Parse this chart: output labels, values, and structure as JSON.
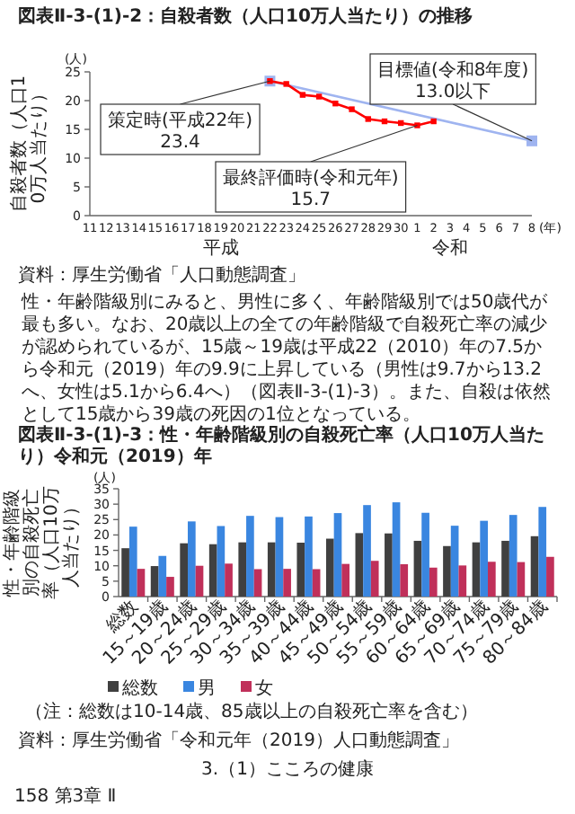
{
  "chart_data": [
    {
      "type": "line",
      "title": "図表Ⅱ-3-(1)-2：自殺者数（人口10万人当たり）の推移",
      "ylabel": "自殺者数（人口10万人当たり）",
      "xlabel": "(年)",
      "categories": [
        "11",
        "12",
        "13",
        "14",
        "15",
        "16",
        "17",
        "18",
        "19",
        "20",
        "21",
        "22",
        "23",
        "24",
        "25",
        "26",
        "27",
        "28",
        "29",
        "30",
        "1",
        "2",
        "3",
        "4",
        "5",
        "6",
        "7",
        "8"
      ],
      "series": [
        {
          "color": "#ff0000",
          "values": [
            null,
            null,
            null,
            null,
            null,
            null,
            null,
            null,
            null,
            null,
            null,
            23.4,
            22.9,
            21.0,
            20.7,
            19.5,
            18.5,
            16.8,
            16.4,
            16.1,
            15.7,
            16.4,
            null,
            null,
            null,
            null,
            null,
            null
          ]
        },
        {
          "color": "#9fb4f0",
          "values": [
            null,
            null,
            null,
            null,
            null,
            null,
            null,
            null,
            null,
            null,
            null,
            23.4,
            null,
            null,
            null,
            null,
            null,
            null,
            null,
            null,
            null,
            null,
            null,
            null,
            null,
            null,
            null,
            13.0
          ]
        }
      ],
      "ylim": [
        0,
        25
      ],
      "yticks": [
        0,
        5,
        10,
        15,
        20,
        25
      ],
      "marker": "square",
      "grid": false,
      "legend": false,
      "annotations": [
        {
          "text": "策定時(平成22年)\n23.4",
          "x": "22",
          "y": 23.4
        },
        {
          "text": "最終評価時(令和元年)\n15.7",
          "x": "1",
          "y": 15.7
        },
        {
          "text": "目標値(令和8年度)\n13.0以下",
          "x": "8",
          "y": 13.0
        },
        "(人)",
        "平成",
        "令和",
        "資料：厚生労働省「人口動態調査」",
        "性・年齢階級別にみると、男性に多く、年齢階級別では50歳代が最も多い。なお、20歳以上の全ての年齢階級で自殺死亡率の減少が認められているが、15歳～19歳は平成22（2010）年の7.5から令和元（2019）年の9.9に上昇している（男性は9.7から13.2へ、女性は5.1から6.4へ）（図表Ⅱ-3-(1)-3）。また、自殺は依然として15歳から39歳の死因の1位となっている。"
      ]
    },
    {
      "type": "bar",
      "title": "図表Ⅱ-3-(1)-3：性・年齢階級別の自殺死亡率（人口10万人当たり）令和元（2019）年",
      "ylabel": "性・年齢階級別の自殺死亡率（人口10万人当たり）",
      "categories": [
        "総数",
        "15～19歳",
        "20～24歳",
        "25～29歳",
        "30～34歳",
        "35～39歳",
        "40～44歳",
        "45～49歳",
        "50～54歳",
        "55～59歳",
        "60～64歳",
        "65～69歳",
        "70～74歳",
        "75～79歳",
        "80～84歳"
      ],
      "series": [
        {
          "name": "総数",
          "color": "#404040",
          "values": [
            15.7,
            9.9,
            17.3,
            17.0,
            17.6,
            17.6,
            17.5,
            18.8,
            20.6,
            20.5,
            18.1,
            16.4,
            17.6,
            18.1,
            19.6
          ]
        },
        {
          "name": "男",
          "color": "#3a86e0",
          "values": [
            22.7,
            13.2,
            24.4,
            22.9,
            26.2,
            25.8,
            26.0,
            27.1,
            29.7,
            30.6,
            27.2,
            23.0,
            24.6,
            26.5,
            29.1
          ]
        },
        {
          "name": "女",
          "color": "#c0305a",
          "values": [
            9.0,
            6.4,
            10.0,
            10.7,
            8.9,
            9.0,
            8.9,
            10.6,
            11.6,
            10.5,
            9.4,
            10.1,
            11.3,
            11.2,
            12.9
          ]
        }
      ],
      "ylim": [
        0,
        35
      ],
      "yticks": [
        0,
        5,
        10,
        15,
        20,
        25,
        30,
        35
      ],
      "grid": false,
      "legend": "bottom",
      "annotations": [
        "(人)",
        "（注：総数は10-14歳、85歳以上の自殺死亡率を含む）",
        "資料：厚生労働省「令和元年（2019）人口動態調査」",
        "3.（1）こころの健康",
        "158 第3章 Ⅱ"
      ]
    }
  ]
}
